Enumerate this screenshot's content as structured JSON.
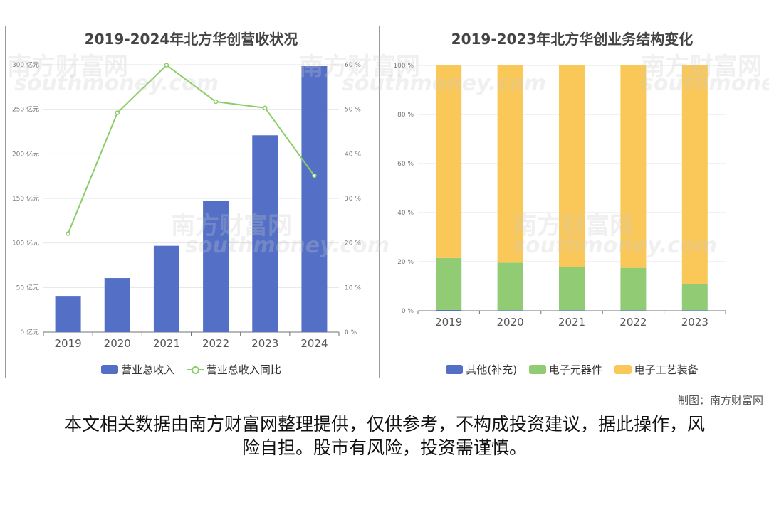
{
  "left_chart": {
    "title": "2019-2024年北方华创营收状况",
    "legend": {
      "bar": "营业总收入",
      "line": "营业总收入同比"
    }
  },
  "right_chart": {
    "title": "2019-2023年北方华创业务结构变化",
    "legend": [
      "其他(补充)",
      "电子元器件",
      "电子工艺装备"
    ]
  },
  "watermark": {
    "text": "南方财富网",
    "latin": "southmoney.com"
  },
  "credit": "制图：南方财富网",
  "disclaimer": "本文相关数据由南方财富网整理提供，仅供参考，不构成投资建议，据此操作，风险自担。股市有风险，投资需谨慎。",
  "colors": {
    "blue": "#5470c6",
    "green": "#91cc75",
    "yellow": "#fac858",
    "line": "#8ccd67"
  },
  "chart_data": [
    {
      "type": "bar",
      "title": "2019-2024年北方华创营收状况",
      "categories": [
        "2019",
        "2020",
        "2021",
        "2022",
        "2023",
        "2024"
      ],
      "series": [
        {
          "name": "营业总收入",
          "type": "bar",
          "axis": "left",
          "values": [
            40.6,
            60.6,
            96.8,
            146.9,
            220.8,
            298.4
          ]
        },
        {
          "name": "营业总收入同比",
          "type": "line",
          "axis": "right",
          "values": [
            22.1,
            49.2,
            59.9,
            51.7,
            50.3,
            35.1
          ]
        }
      ],
      "y_left": {
        "ticks": [
          "0 亿元",
          "50 亿元",
          "100 亿元",
          "150 亿元",
          "200 亿元",
          "250 亿元",
          "300 亿元"
        ],
        "ylim": [
          0,
          300
        ]
      },
      "y_right": {
        "ticks": [
          "0 %",
          "10 %",
          "20 %",
          "30 %",
          "40 %",
          "50 %",
          "60 %"
        ],
        "ylim": [
          0,
          60
        ]
      },
      "legend_position": "bottom"
    },
    {
      "type": "bar",
      "stacked": true,
      "title": "2019-2023年北方华创业务结构变化",
      "categories": [
        "2019",
        "2020",
        "2021",
        "2022",
        "2023"
      ],
      "series": [
        {
          "name": "其他(补充)",
          "values": [
            0.3,
            0.2,
            0.2,
            0.2,
            0.2
          ]
        },
        {
          "name": "电子元器件",
          "values": [
            21.2,
            19.4,
            17.6,
            17.3,
            10.7
          ]
        },
        {
          "name": "电子工艺装备",
          "values": [
            78.5,
            80.4,
            82.2,
            82.5,
            89.1
          ]
        }
      ],
      "y": {
        "ticks": [
          "0 %",
          "20 %",
          "40 %",
          "60 %",
          "80 %",
          "100 %"
        ],
        "ylim": [
          0,
          100
        ]
      },
      "legend_position": "bottom"
    }
  ]
}
